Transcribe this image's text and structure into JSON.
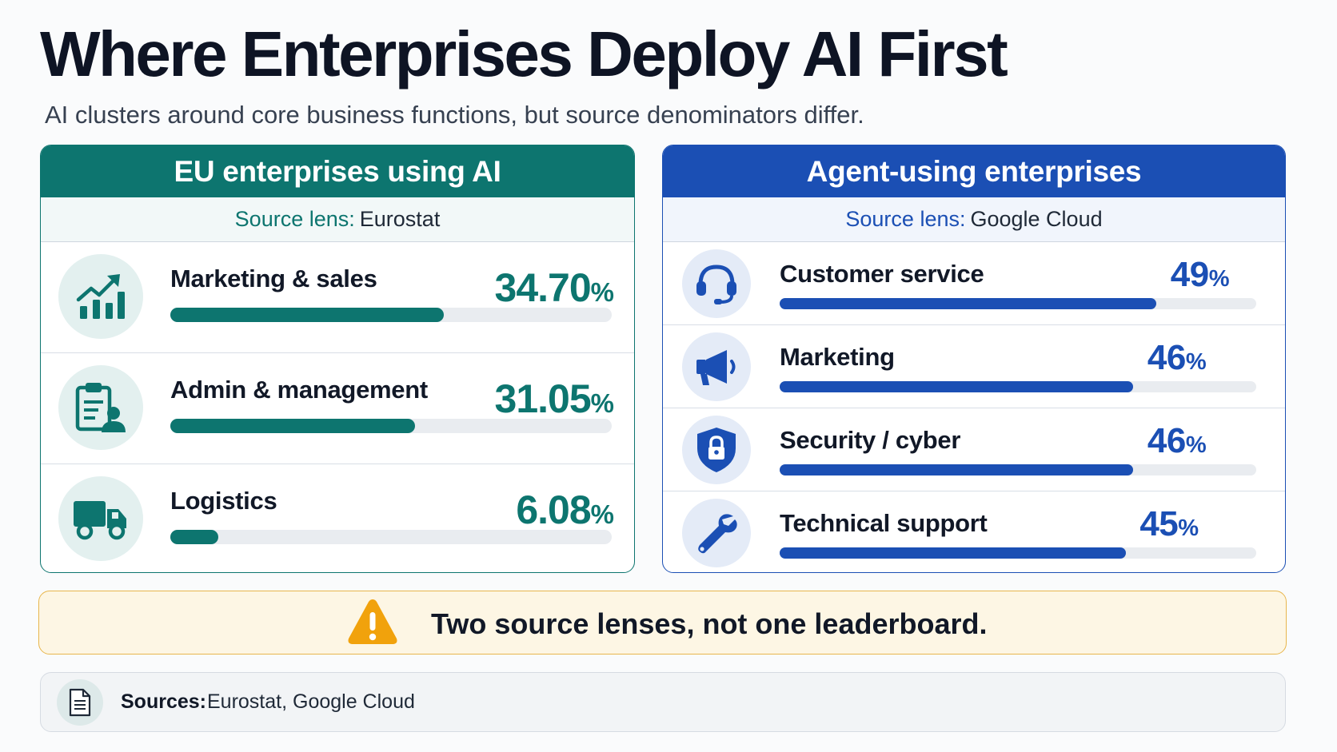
{
  "title": "Where Enterprises Deploy AI First",
  "subtitle": "AI clusters around core business functions, but source denominators differ.",
  "colors": {
    "teal": "#0d756f",
    "blue": "#1b4fb4",
    "warning": "#f1a20c"
  },
  "chart_data": [
    {
      "type": "bar",
      "title": "EU enterprises using AI",
      "lens_label": "Source lens:",
      "lens_source": "Eurostat",
      "categories": [
        "Marketing & sales",
        "Admin & management",
        "Logistics"
      ],
      "values": [
        34.7,
        31.05,
        6.08
      ],
      "value_labels": [
        "34.70",
        "31.05",
        "6.08"
      ],
      "unit": "%",
      "ylim": [
        0,
        56
      ],
      "icons": [
        "rising-chart-icon",
        "clipboard-person-icon",
        "truck-icon"
      ]
    },
    {
      "type": "bar",
      "title": "Agent-using enterprises",
      "lens_label": "Source lens:",
      "lens_source": "Google Cloud",
      "categories": [
        "Customer service",
        "Marketing",
        "Security / cyber",
        "Technical support"
      ],
      "values": [
        49,
        46,
        46,
        45
      ],
      "value_labels": [
        "49",
        "46",
        "46",
        "45"
      ],
      "unit": "%",
      "ylim": [
        0,
        62
      ],
      "icons": [
        "headset-icon",
        "megaphone-icon",
        "shield-lock-icon",
        "wrench-icon"
      ]
    }
  ],
  "banner": {
    "text": "Two source lenses, not one leaderboard.",
    "icon": "warning-icon"
  },
  "sources": {
    "label": "Sources:",
    "text": "Eurostat, Google Cloud",
    "icon": "document-icon"
  }
}
